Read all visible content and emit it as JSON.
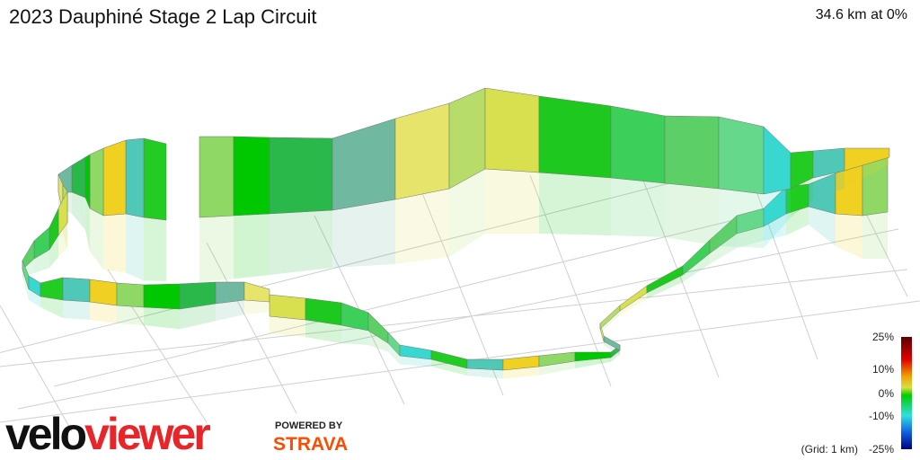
{
  "header": {
    "title": "2023 Dauphiné Stage 2 Lap Circuit",
    "summary": "34.6 km at 0%"
  },
  "legend": {
    "labels": [
      "25%",
      "10%",
      "0%",
      "-10%",
      "-25%"
    ],
    "grid_note": "(Grid: 1 km)"
  },
  "footer": {
    "logo": "veloviewer",
    "powered_by": "POWERED BY",
    "partner": "STRAVA"
  }
}
